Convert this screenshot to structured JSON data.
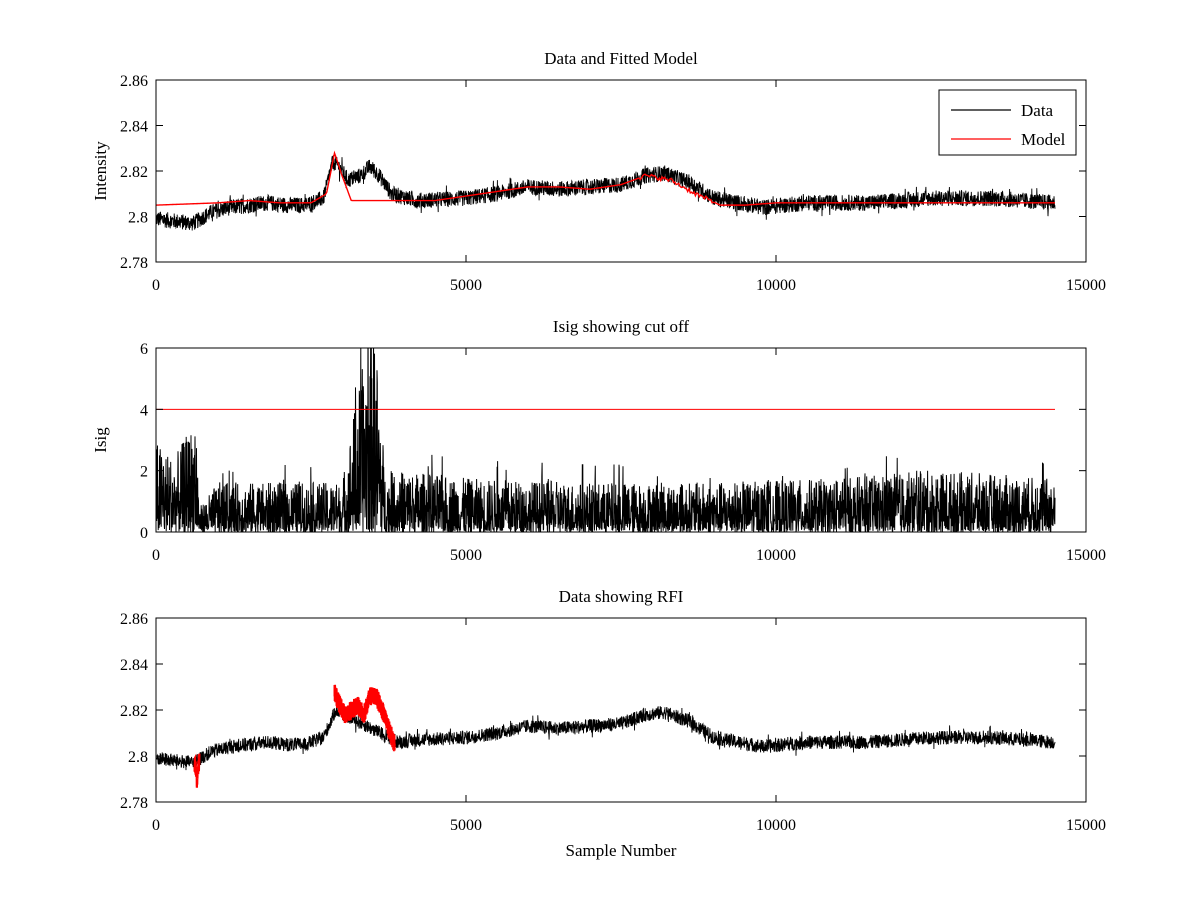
{
  "chart_data": [
    {
      "type": "line",
      "title": "Data and Fitted Model",
      "xlabel": "",
      "ylabel": "Intensity",
      "xlim": [
        0,
        15000
      ],
      "ylim": [
        2.78,
        2.86
      ],
      "xticks": [
        0,
        5000,
        10000,
        15000
      ],
      "yticks": [
        2.78,
        2.8,
        2.82,
        2.84,
        2.86
      ],
      "xtick_labels": [
        "0",
        "5000",
        "10000",
        "15000"
      ],
      "ytick_labels": [
        "2.78",
        "2.8",
        "2.82",
        "2.84",
        "2.86"
      ],
      "grid": false,
      "legend": "top-right",
      "noise_amplitude": 0.007,
      "series": [
        {
          "name": "Data",
          "color": "#000000",
          "x": [
            0,
            300,
            600,
            900,
            1200,
            1500,
            1800,
            2100,
            2400,
            2700,
            2850,
            2950,
            3100,
            3300,
            3450,
            3600,
            3800,
            4200,
            5000,
            5500,
            6000,
            6500,
            7000,
            7500,
            7900,
            8200,
            8600,
            9000,
            9400,
            9800,
            10500,
            11500,
            12500,
            13500,
            14500
          ],
          "y": [
            2.799,
            2.798,
            2.797,
            2.802,
            2.804,
            2.805,
            2.806,
            2.805,
            2.805,
            2.808,
            2.824,
            2.822,
            2.816,
            2.818,
            2.822,
            2.818,
            2.81,
            2.807,
            2.808,
            2.81,
            2.813,
            2.812,
            2.813,
            2.814,
            2.818,
            2.819,
            2.815,
            2.808,
            2.806,
            2.804,
            2.806,
            2.806,
            2.808,
            2.808,
            2.806
          ]
        },
        {
          "name": "Model",
          "color": "#ff0000",
          "x": [
            0,
            1000,
            1500,
            2000,
            2500,
            2750,
            2880,
            3000,
            3150,
            3600,
            4500,
            5500,
            6000,
            6500,
            7000,
            7500,
            7900,
            8300,
            8700,
            9100,
            9500,
            10000,
            11000,
            12000,
            13000,
            14500
          ],
          "y": [
            2.805,
            2.806,
            2.807,
            2.806,
            2.806,
            2.81,
            2.828,
            2.818,
            2.807,
            2.807,
            2.807,
            2.811,
            2.813,
            2.813,
            2.812,
            2.814,
            2.818,
            2.816,
            2.81,
            2.805,
            2.805,
            2.806,
            2.806,
            2.806,
            2.806,
            2.806
          ]
        }
      ]
    },
    {
      "type": "line",
      "title": "Isig showing cut off",
      "xlabel": "",
      "ylabel": "Isig",
      "xlim": [
        0,
        15000
      ],
      "ylim": [
        0,
        6
      ],
      "xticks": [
        0,
        5000,
        10000,
        15000
      ],
      "yticks": [
        0,
        2,
        4,
        6
      ],
      "xtick_labels": [
        "0",
        "5000",
        "10000",
        "15000"
      ],
      "ytick_labels": [
        "0",
        "2",
        "4",
        "6"
      ],
      "grid": false,
      "series": [
        {
          "color": "#000000",
          "x": [
            0,
            300,
            650,
            700,
            1000,
            2000,
            3000,
            3200,
            3400,
            3500,
            3700,
            4000,
            5000,
            7000,
            9000,
            11000,
            12500,
            14500
          ],
          "y": [
            2.2,
            1.8,
            2.8,
            0.6,
            1.2,
            1.2,
            1.2,
            3.0,
            4.5,
            5.6,
            1.4,
            1.5,
            1.3,
            1.2,
            1.2,
            1.3,
            1.5,
            1.3
          ]
        },
        {
          "name": "cut off",
          "color": "#ff0000",
          "x": [
            0,
            14500
          ],
          "y": [
            4,
            4
          ]
        }
      ]
    },
    {
      "type": "line",
      "title": "Data showing RFI",
      "xlabel": "Sample Number",
      "ylabel": "",
      "xlim": [
        0,
        15000
      ],
      "ylim": [
        2.78,
        2.86
      ],
      "xticks": [
        0,
        5000,
        10000,
        15000
      ],
      "yticks": [
        2.78,
        2.8,
        2.82,
        2.84,
        2.86
      ],
      "xtick_labels": [
        "0",
        "5000",
        "10000",
        "15000"
      ],
      "ytick_labels": [
        "2.78",
        "2.8",
        "2.82",
        "2.84",
        "2.86"
      ],
      "grid": false,
      "noise_amplitude": 0.006,
      "series": [
        {
          "color": "#000000",
          "x": [
            0,
            300,
            600,
            900,
            1200,
            1500,
            1800,
            2100,
            2400,
            2700,
            2900,
            3900,
            4200,
            5000,
            5500,
            6000,
            6500,
            7000,
            7500,
            7900,
            8200,
            8600,
            9000,
            9400,
            9800,
            10500,
            11500,
            12500,
            13500,
            14500
          ],
          "y": [
            2.799,
            2.798,
            2.797,
            2.802,
            2.804,
            2.805,
            2.806,
            2.805,
            2.805,
            2.808,
            2.82,
            2.806,
            2.807,
            2.808,
            2.81,
            2.813,
            2.812,
            2.813,
            2.814,
            2.818,
            2.819,
            2.815,
            2.808,
            2.806,
            2.804,
            2.806,
            2.806,
            2.808,
            2.808,
            2.806
          ]
        },
        {
          "name": "RFI",
          "color": "#ff0000",
          "x": [
            620,
            640,
            660,
            680,
            700,
            2880,
            2950,
            3050,
            3150,
            3250,
            3350,
            3450,
            3550,
            3650,
            3750,
            3850
          ],
          "y": [
            2.797,
            2.794,
            2.79,
            2.796,
            2.798,
            2.828,
            2.823,
            2.818,
            2.82,
            2.822,
            2.818,
            2.826,
            2.826,
            2.82,
            2.812,
            2.805
          ]
        }
      ]
    }
  ]
}
